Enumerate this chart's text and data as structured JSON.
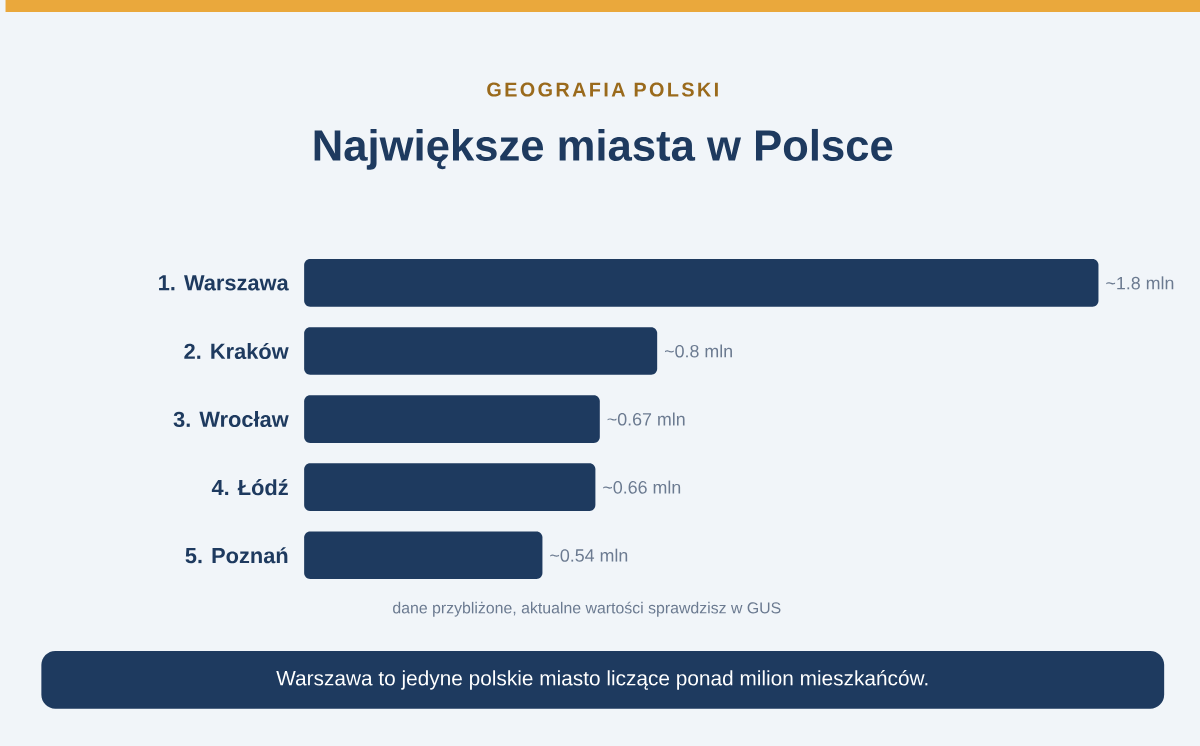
{
  "chart_data": {
    "type": "bar",
    "orientation": "horizontal",
    "subtitle": "GEOGRAFIA POLSKI",
    "title": "Największe miasta w Polsce",
    "categories": [
      "1. Warszawa",
      "2. Kraków",
      "3. Wrocław",
      "4. Łódź",
      "5. Poznań"
    ],
    "values": [
      1.8,
      0.8,
      0.67,
      0.66,
      0.54
    ],
    "value_labels": [
      "~1.8 mln",
      "~0.8 mln",
      "~0.67 mln",
      "~0.66 mln",
      "~0.54 mln"
    ],
    "color": "#1e3a5f",
    "tick_labels": "y",
    "grid": false,
    "annotations": [
      "dane przybliżone, aktualne wartości sprawdzisz w GUS",
      "Warszawa to jedyne polskie miasto liczące ponad milion mieszkańców."
    ]
  }
}
